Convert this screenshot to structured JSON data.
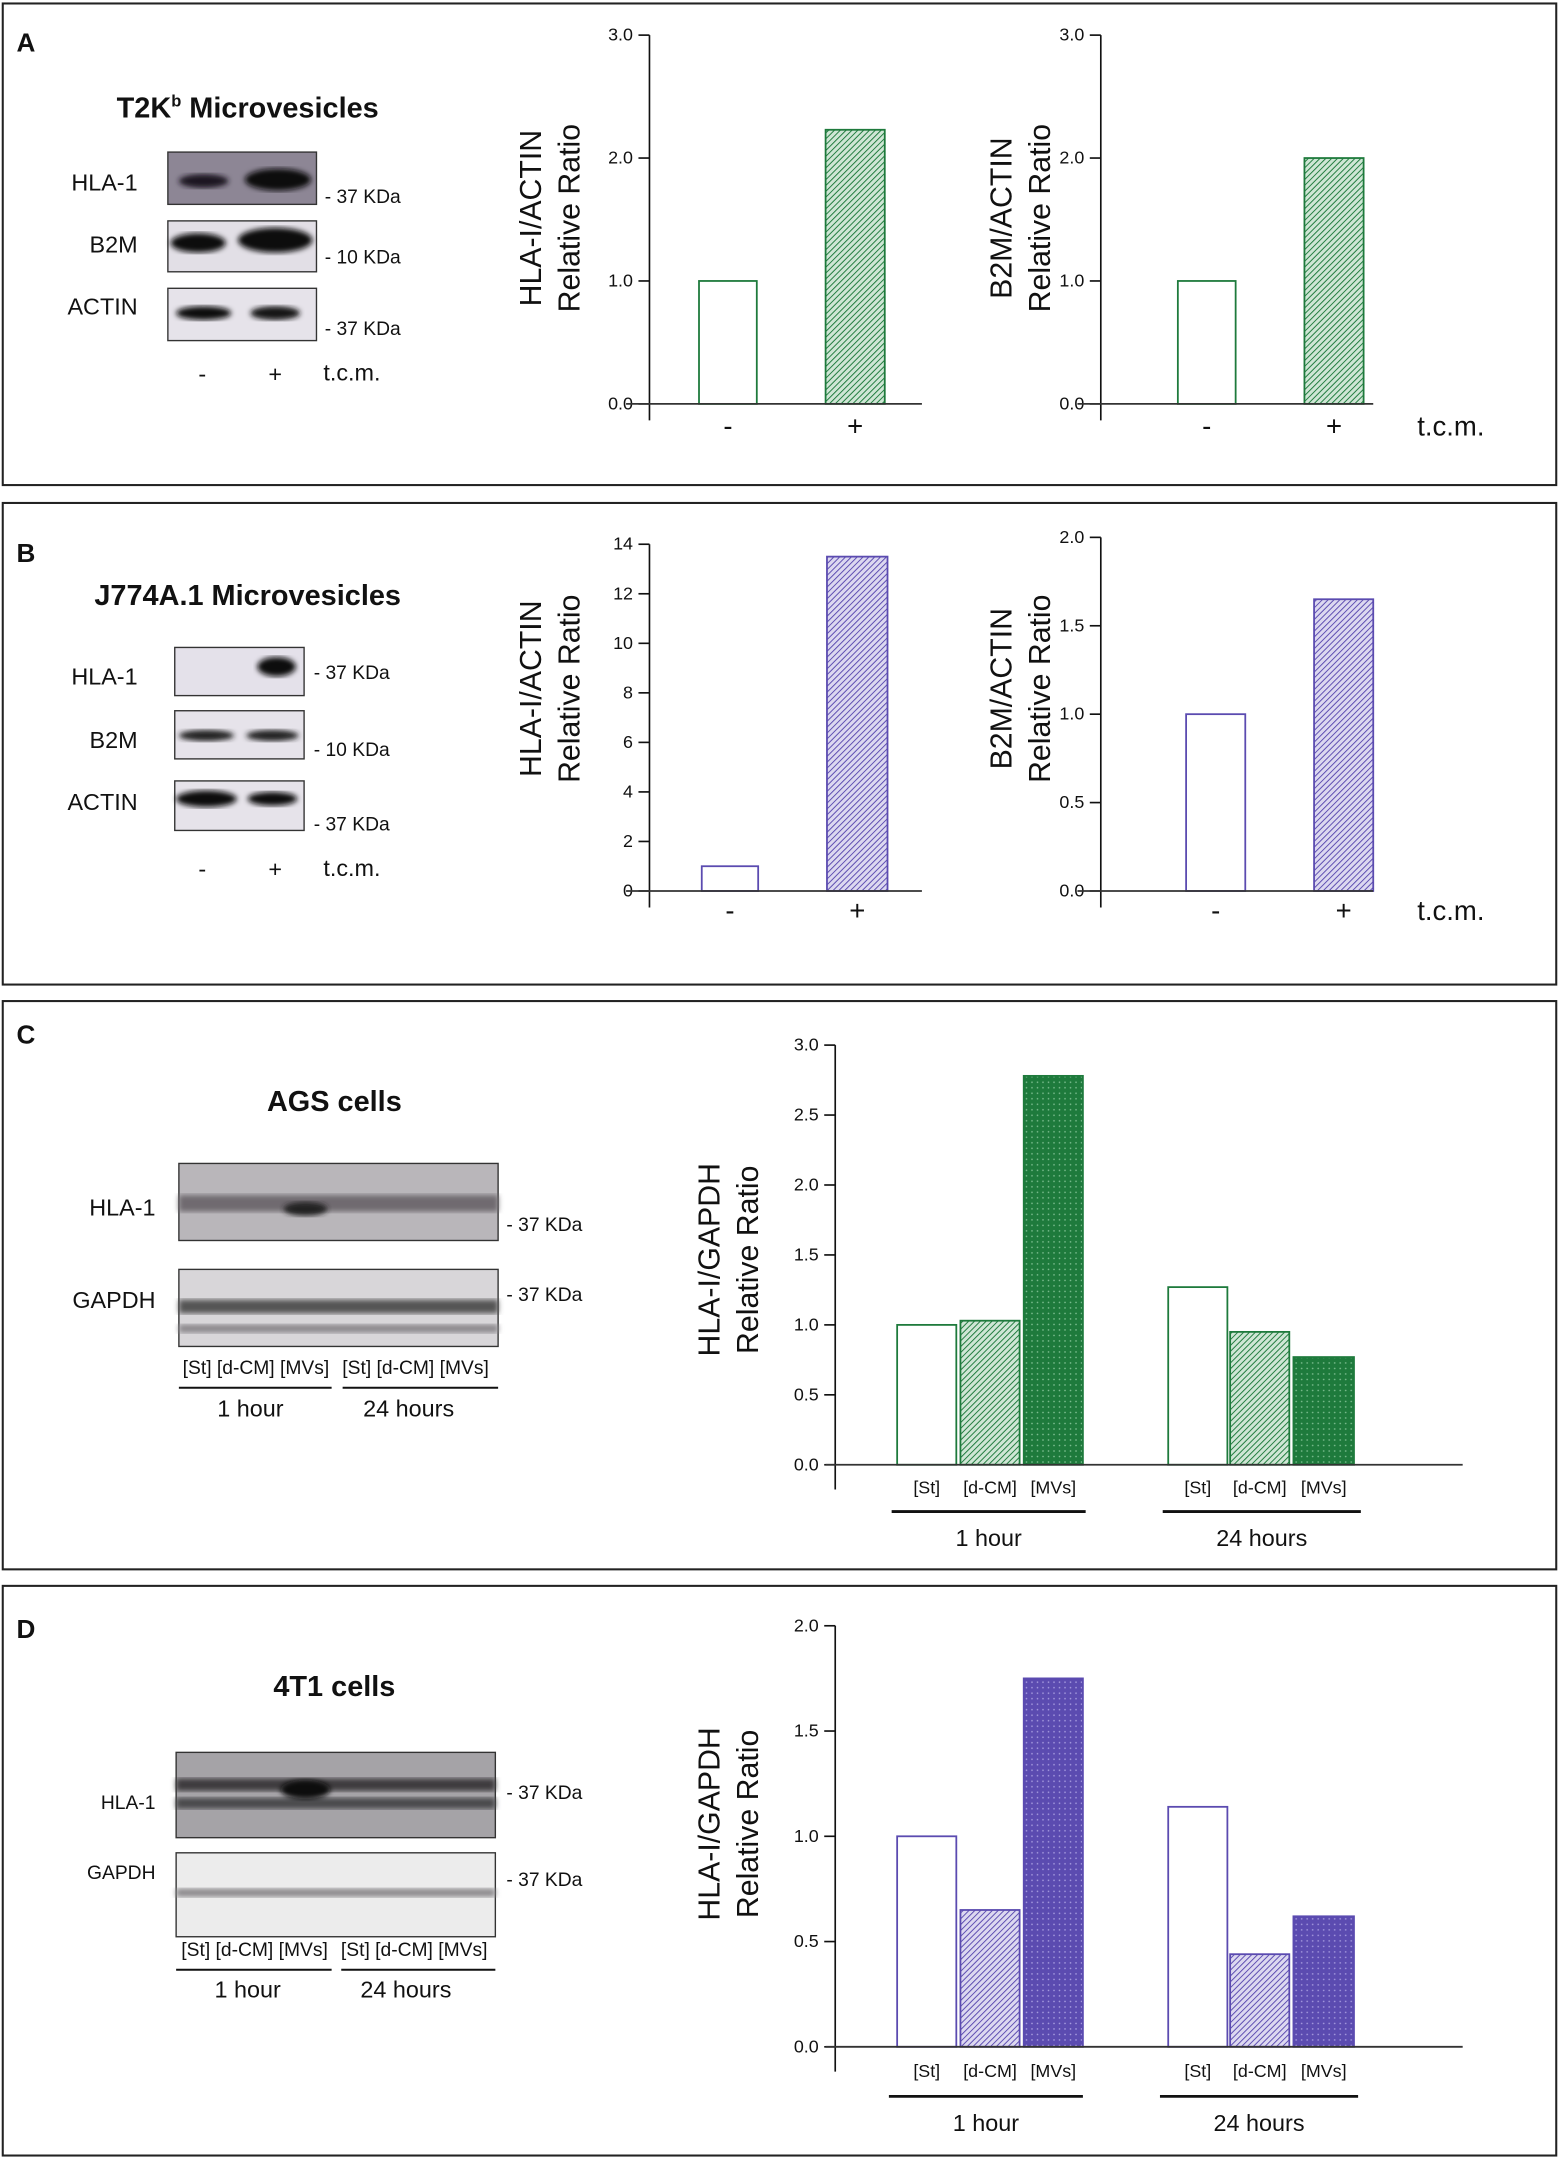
{
  "colors": {
    "green": "#1e7a3c",
    "purple": "#5b4bb0"
  },
  "panels": {
    "A": {
      "letter": "A",
      "title": "T2K",
      "title_sup": "b",
      "title_rest": " Microvesicles",
      "rows": [
        "HLA-1",
        "B2M",
        "ACTIN"
      ],
      "kda": [
        "- 37 KDa",
        "- 10 KDa",
        "- 37 KDa"
      ],
      "lanes": [
        "-",
        "+"
      ],
      "treatment": "t.c.m."
    },
    "B": {
      "letter": "B",
      "title": "J774A.1 Microvesicles",
      "rows": [
        "HLA-1",
        "B2M",
        "ACTIN"
      ],
      "kda": [
        "- 37 KDa",
        "- 10 KDa",
        "- 37 KDa"
      ],
      "lanes": [
        "-",
        "+"
      ],
      "treatment": "t.c.m."
    },
    "C": {
      "letter": "C",
      "title": "AGS cells",
      "rows": [
        "HLA-1",
        "GAPDH"
      ],
      "kda": [
        "- 37 KDa",
        "- 37 KDa"
      ],
      "lanes": "[St] [d-CM] [MVs]",
      "groups": [
        "1 hour",
        "24 hours"
      ]
    },
    "D": {
      "letter": "D",
      "title": "4T1 cells",
      "rows": [
        "HLA-1",
        "GAPDH"
      ],
      "kda": [
        "- 37 KDa",
        "- 37 KDa"
      ],
      "lanes": "[St] [d-CM] [MVs]",
      "groups": [
        "1 hour",
        "24 hours"
      ]
    }
  },
  "chart_data": [
    {
      "id": "A1",
      "type": "bar",
      "ylabel": [
        "HLA-I/ACTIN",
        "Relative Ratio"
      ],
      "categories": [
        "-",
        "+"
      ],
      "values": [
        1.0,
        2.23
      ],
      "ylim": [
        0,
        3
      ],
      "yticks": [
        "0.0",
        "1.0",
        "2.0",
        "3.0"
      ],
      "color": "green"
    },
    {
      "id": "A2",
      "type": "bar",
      "ylabel": [
        "B2M/ACTIN",
        "Relative Ratio"
      ],
      "categories": [
        "-",
        "+"
      ],
      "values": [
        1.0,
        2.0
      ],
      "ylim": [
        0,
        3
      ],
      "yticks": [
        "0.0",
        "1.0",
        "2.0",
        "3.0"
      ],
      "xlabel": "t.c.m.",
      "color": "green"
    },
    {
      "id": "B1",
      "type": "bar",
      "ylabel": [
        "HLA-I/ACTIN",
        "Relative Ratio"
      ],
      "categories": [
        "-",
        "+"
      ],
      "values": [
        1.0,
        13.5
      ],
      "ylim": [
        0,
        14
      ],
      "yticks": [
        "0",
        "2",
        "4",
        "6",
        "8",
        "10",
        "12",
        "14"
      ],
      "color": "purple"
    },
    {
      "id": "B2",
      "type": "bar",
      "ylabel": [
        "B2M/ACTIN",
        "Relative Ratio"
      ],
      "categories": [
        "-",
        "+"
      ],
      "values": [
        1.0,
        1.65
      ],
      "ylim": [
        0,
        2
      ],
      "yticks": [
        "0.0",
        "0.5",
        "1.0",
        "1.5",
        "2.0"
      ],
      "xlabel": "t.c.m.",
      "color": "purple"
    },
    {
      "id": "C",
      "type": "bar",
      "ylabel": [
        "HLA-I/GAPDH",
        "Relative Ratio"
      ],
      "categories": [
        "[St]",
        "[d-CM]",
        "[MVs]",
        "[St]",
        "[d-CM]",
        "[MVs]"
      ],
      "groups": [
        "1 hour",
        "24 hours"
      ],
      "values": [
        1.0,
        1.03,
        2.78,
        1.27,
        0.95,
        0.77
      ],
      "ylim": [
        0,
        3
      ],
      "yticks": [
        "0.0",
        "0.5",
        "1.0",
        "1.5",
        "2.0",
        "2.5",
        "3.0"
      ],
      "color": "green"
    },
    {
      "id": "D",
      "type": "bar",
      "ylabel": [
        "HLA-I/GAPDH",
        "Relative Ratio"
      ],
      "categories": [
        "[St]",
        "[d-CM]",
        "[MVs]",
        "[St]",
        "[d-CM]",
        "[MVs]"
      ],
      "groups": [
        "1 hour",
        "24 hours"
      ],
      "values": [
        1.0,
        0.65,
        1.75,
        1.14,
        0.44,
        0.62
      ],
      "ylim": [
        0,
        2
      ],
      "yticks": [
        "0.0",
        "0.5",
        "1.0",
        "1.5",
        "2.0"
      ],
      "color": "purple"
    }
  ]
}
